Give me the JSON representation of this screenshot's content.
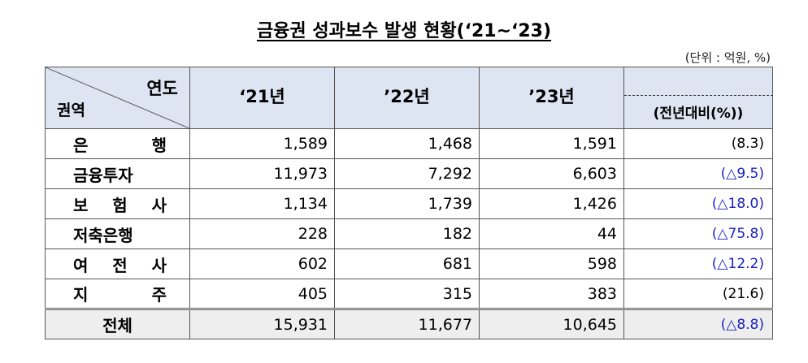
{
  "title": "금융권 성과보수 발생 현황(‘21~‘23)",
  "unit_note": "(단위 : 억원, %)",
  "header": {
    "corner_year": "연도",
    "corner_area": "권역",
    "years": [
      "‘21년",
      "’22년",
      "’23년"
    ],
    "yoy": "(전년대비(%))"
  },
  "rows": [
    {
      "name": "은 행",
      "v21": "1,589",
      "v22": "1,468",
      "v23": "1,591",
      "yoy": "(8.3)",
      "negative": false
    },
    {
      "name": "금융투자",
      "v21": "11,973",
      "v22": "7,292",
      "v23": "6,603",
      "yoy": "(△9.5)",
      "negative": true
    },
    {
      "name": "보 험 사",
      "v21": "1,134",
      "v22": "1,739",
      "v23": "1,426",
      "yoy": "(△18.0)",
      "negative": true
    },
    {
      "name": "저축은행",
      "v21": "228",
      "v22": "182",
      "v23": "44",
      "yoy": "(△75.8)",
      "negative": true
    },
    {
      "name": "여 전 사",
      "v21": "602",
      "v22": "681",
      "v23": "598",
      "yoy": "(△12.2)",
      "negative": true
    },
    {
      "name": "지 주",
      "v21": "405",
      "v22": "315",
      "v23": "383",
      "yoy": "(21.6)",
      "negative": false
    }
  ],
  "total": {
    "name": "전체",
    "v21": "15,931",
    "v22": "11,677",
    "v23": "10,645",
    "yoy": "(△8.8)",
    "negative": true
  },
  "colors": {
    "header_bg": "#dde4f2",
    "total_bg": "#eeeeee",
    "decrease_text": "#1c22c8"
  }
}
